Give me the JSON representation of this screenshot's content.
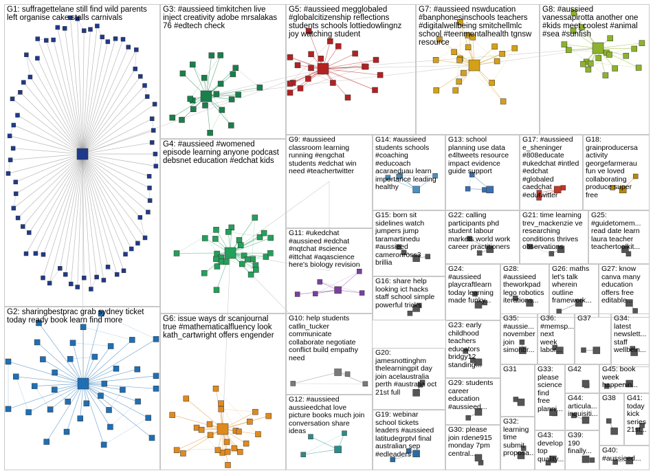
{
  "groups": [
    {
      "id": "G1",
      "label": "G1: suffragettelane still find wild parents\nleft organise cake stalls carnivals",
      "color": "#1f3a8a",
      "node_count": 70
    },
    {
      "id": "G2",
      "label": "G2: sharingbestprac grab sydney ticket\ntoday ready book learn find more",
      "color": "#1f6fb4",
      "node_count": 38
    },
    {
      "id": "G3",
      "label": "G3: #aussieed timkitchen live\ninject creativity adobe mrsalakas\n76 #edtech check",
      "color": "#1a7f4b",
      "node_count": 22
    },
    {
      "id": "G4",
      "label": "G4: #aussieed #womened\nepisode learning anyone podcast\ndebsnet education #edchat kids",
      "color": "#23a05a",
      "node_count": 30
    },
    {
      "id": "G5",
      "label": "G5: #aussieed megglobaled\n#globalcitizenship reflections\nstudents schools lottiedowlingnz\njoy watching student",
      "color": "#b22222",
      "node_count": 22
    },
    {
      "id": "G6",
      "label": "G6: issue ways dr scanjournal\ntrue #mathematicalfluency look\nkath_cartwright offers engender",
      "color": "#e08a1e",
      "node_count": 26
    },
    {
      "id": "G7",
      "label": "G7: #aussieed nswducation\n#banphonesinschools teachers\n#digitalwellbeing smitchellmlc\nschool #teenmentalhealth tgnsw\nresource",
      "color": "#d4a017",
      "node_count": 20
    },
    {
      "id": "G8",
      "label": "G8: #aussieed\nvanessapirotta another one\n#kids meet coolest #animal\n#sea #sunfish",
      "color": "#8db32b",
      "node_count": 20
    },
    {
      "id": "G9",
      "label": "G9: #aussieed\nclassroom learning\nrunning #engchat\nstudents #edchat win\nneed #teachertwitter",
      "color": "#6a3d9a",
      "node_count": 0
    },
    {
      "id": "G10",
      "label": "G10: help students\ncatlin_tucker\ncommunicate\ncollaborate negotiate\nconflict build empathy\nneed",
      "color": "#7a7a7a",
      "node_count": 4
    },
    {
      "id": "G11",
      "label": "G11: #ukedchat\n#aussieed #edchat\n#nqtchat #science\n#ittchat #aqascience\nhere's biology revision",
      "color": "#7b3f9e",
      "node_count": 6
    },
    {
      "id": "G12",
      "label": "G12: #aussieed\naussieedchat love\npicture books much join\nconversation share\nideas",
      "color": "#2e8b8b",
      "node_count": 4
    },
    {
      "id": "G13",
      "label": "G13: school\nplanning use data\ne4ltweets resource\nimpact evidence\nguide support",
      "color": "#3a6fb0",
      "node_count": 4
    },
    {
      "id": "G14",
      "label": "G14: #aussieed\nstudents schools\n#coaching\n#educoach\nacaraeduau learn\nimportance leading\nhealthy",
      "color": "#4a90c0",
      "node_count": 5
    },
    {
      "id": "G15",
      "label": "G15: born sit\nsidelines watch\njumpers jump\ntaramartinedu\n#aussieed\ncameronross3\nbrillia",
      "color": "#555555",
      "node_count": 4
    },
    {
      "id": "G16",
      "label": "G16: share help\nlooking ict hacks\nstaff school simple\npowerful tricks",
      "color": "#555555",
      "node_count": 3
    },
    {
      "id": "G17",
      "label": "G17: #aussieed\ne_sheninger\n#808educate\n#ukedchat #intled\n#edchat\n#globaled\ncaedchat\n#edutwitter",
      "color": "#c0392b",
      "node_count": 4
    },
    {
      "id": "G18",
      "label": "G18:\ngrainproducersa\nactivity\ngeorgefarmerau\nfun ve loved\ncollaborating\nproduce super\nfree",
      "color": "#b8860b",
      "node_count": 3
    },
    {
      "id": "G19",
      "label": "G19: webinar\nschool tickets\nleaders #aussieed\nlatitudegrptvl final\naustralian sep\n#edleaders",
      "color": "#2d6a9f",
      "node_count": 3
    },
    {
      "id": "G20",
      "label": "G20:\njamesnottinghm\nthelearningpit day\njoin acelaustralia\nperth #australia oct\n21st full",
      "color": "#555555",
      "node_count": 3
    },
    {
      "id": "G21",
      "label": "G21: time learning\ntrev_mackenzie ve\nresearching\nconditions thrives\nobservations",
      "color": "#555555",
      "node_count": 3
    },
    {
      "id": "G22",
      "label": "G22: calling\nparticipants phd\nstudent labour\nmarkets world work\ncareer practitioners",
      "color": "#555555",
      "node_count": 3
    },
    {
      "id": "G23",
      "label": "G23: early\nchildhood\nteachers\neducators\nbridgy12\nstanding...",
      "color": "#555555",
      "node_count": 3
    },
    {
      "id": "G24",
      "label": "G24:\n#aussieed\nplaycraftlearn\ntoday learning\nmade funky...",
      "color": "#555555",
      "node_count": 3
    },
    {
      "id": "G25",
      "label": "G25:\n#guidetomem...\nread date learn\nlaura teacher\nteachertoolkit...",
      "color": "#555555",
      "node_count": 2
    },
    {
      "id": "G26",
      "label": "G26: maths\nlet's talk\nwherein\noutline\nframework...",
      "color": "#555555",
      "node_count": 2
    },
    {
      "id": "G27",
      "label": "G27: know\ncanva many\neducation\noffers free\neditable...",
      "color": "#555555",
      "node_count": 2
    },
    {
      "id": "G28",
      "label": "G28:\n#aussieed\ntheworkpad\nlego robotics\niterations...",
      "color": "#555555",
      "node_count": 2
    },
    {
      "id": "G29",
      "label": "G29: students\ncareer\neducation\n#aussieed...",
      "color": "#555555",
      "node_count": 2
    },
    {
      "id": "G30",
      "label": "G30: please\njoin rdene915\nmonday 7pm\ncentral...",
      "color": "#555555",
      "node_count": 2
    },
    {
      "id": "G31",
      "label": "G31",
      "color": "#555555",
      "node_count": 2
    },
    {
      "id": "G32",
      "label": "G32:\nlearning\ntime\nsubmit\nproposa...",
      "color": "#555555",
      "node_count": 2
    },
    {
      "id": "G33",
      "label": "G33:\nplease\nscience\nfind\nfree\nplanni...",
      "color": "#555555",
      "node_count": 2
    },
    {
      "id": "G34",
      "label": "G34:\nlatest\nnewslett...\nstaff\nwellbein...",
      "color": "#555555",
      "node_count": 2
    },
    {
      "id": "G35",
      "label": "G35:\n#aussie...\nnovember\njoin\nsimonbr...",
      "color": "#555555",
      "node_count": 2
    },
    {
      "id": "G36",
      "label": "G36:\n#memsp...\nnext\nweek\nlabor...",
      "color": "#555555",
      "node_count": 2
    },
    {
      "id": "G37",
      "label": "G37",
      "color": "#555555",
      "node_count": 2
    },
    {
      "id": "G38",
      "label": "G38",
      "color": "#555555",
      "node_count": 2
    },
    {
      "id": "G39",
      "label": "G39:\n190\nfinally...",
      "color": "#555555",
      "node_count": 2
    },
    {
      "id": "G40",
      "label": "G40:\n#aussieed...",
      "color": "#555555",
      "node_count": 2
    },
    {
      "id": "G41",
      "label": "G41:\ntoday\nkick\nseries\n21st...",
      "color": "#555555",
      "node_count": 2
    },
    {
      "id": "G42",
      "label": "G42",
      "color": "#555555",
      "node_count": 2
    },
    {
      "id": "G43",
      "label": "G43:\ndevelop\ntop\nquality...",
      "color": "#555555",
      "node_count": 2
    },
    {
      "id": "G44",
      "label": "G44:\narticula...\ninquisiti...",
      "color": "#555555",
      "node_count": 2
    },
    {
      "id": "G45",
      "label": "G45: book\nweek\nhappenin...",
      "color": "#555555",
      "node_count": 2
    }
  ],
  "nodes": [
    {
      "id": "suffragettelane"
    },
    {
      "id": "sharingbestprac"
    },
    {
      "id": "timkitchen"
    },
    {
      "id": "mrsalakas"
    },
    {
      "id": "debsnet"
    },
    {
      "id": "megglobaled"
    },
    {
      "id": "lottiedowlingnz"
    },
    {
      "id": "scanjournal"
    },
    {
      "id": "kath_cartwright"
    },
    {
      "id": "nswducation"
    },
    {
      "id": "smitchellmlc"
    },
    {
      "id": "tgnsw"
    },
    {
      "id": "vanessapirotta"
    },
    {
      "id": "catlin_tucker"
    },
    {
      "id": "aussieedchat"
    },
    {
      "id": "e4ltweets"
    },
    {
      "id": "acaraeduau"
    },
    {
      "id": "taramartinedu"
    },
    {
      "id": "cameronross3"
    },
    {
      "id": "e_sheninger"
    },
    {
      "id": "caedchat"
    },
    {
      "id": "grainproducersa"
    },
    {
      "id": "georgefarmerau"
    },
    {
      "id": "latitudegrptvl"
    },
    {
      "id": "jamesnottinghm"
    },
    {
      "id": "thelearningpit"
    },
    {
      "id": "acelaustralia"
    },
    {
      "id": "trev_mackenzie"
    },
    {
      "id": "bridgy12"
    },
    {
      "id": "playcraftlearn"
    },
    {
      "id": "theworkpad"
    },
    {
      "id": "rdene915"
    },
    {
      "id": "simonbr"
    }
  ]
}
